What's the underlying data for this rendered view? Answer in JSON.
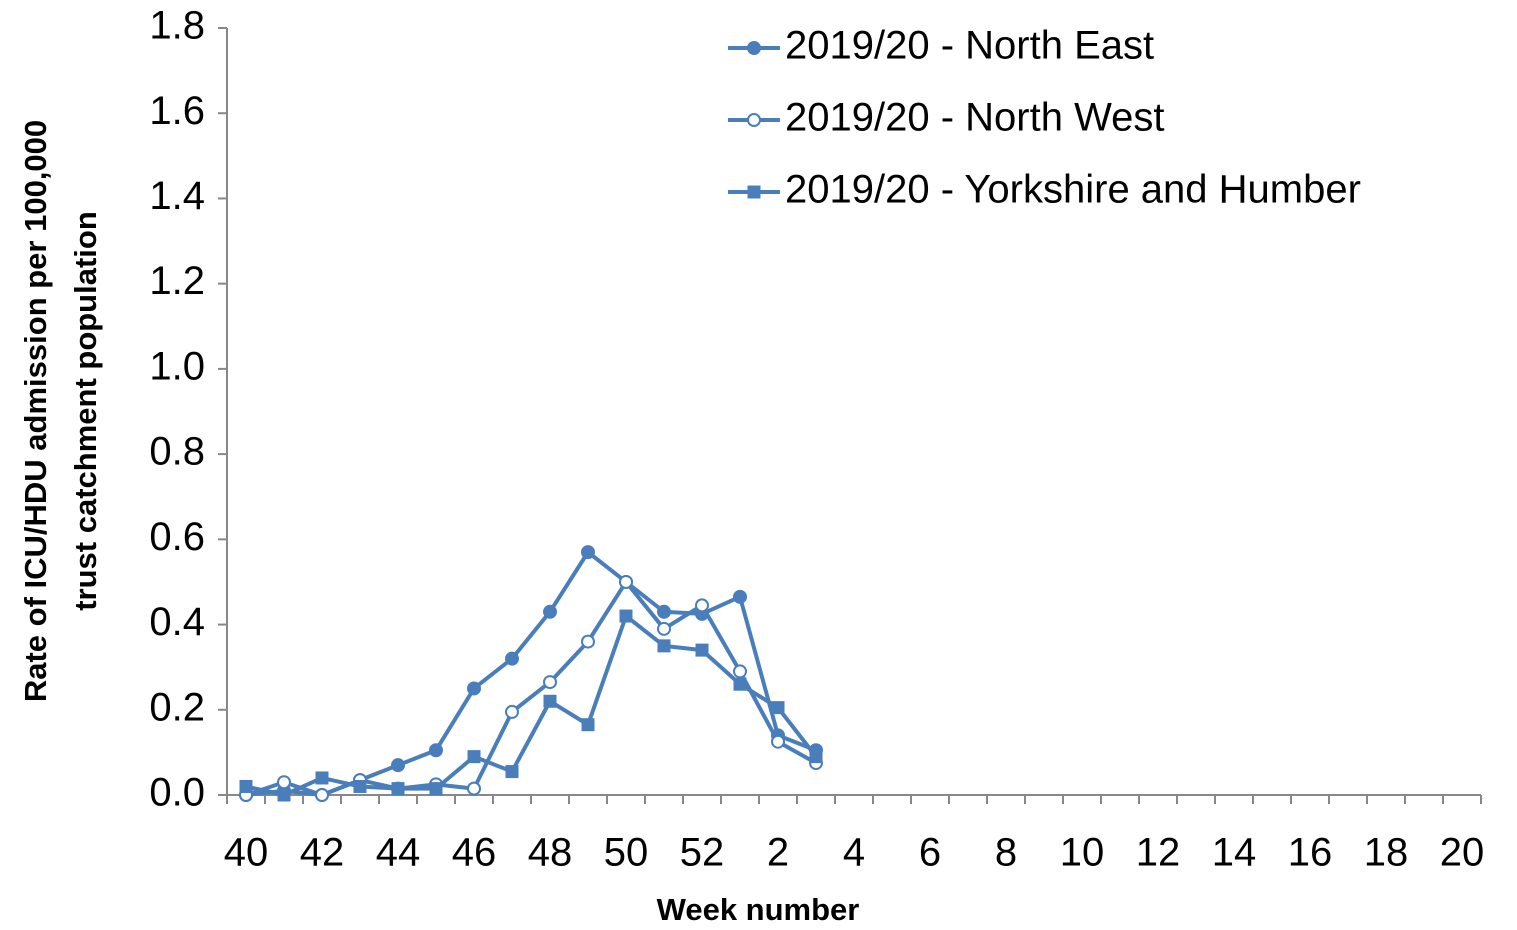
{
  "chart_data": {
    "type": "line",
    "xlabel": "Week number",
    "ylabel": [
      "Rate of ICU/HDU admission per 100,000",
      "trust catchment population"
    ],
    "categories": [
      "40",
      null,
      "42",
      null,
      "44",
      null,
      "46",
      null,
      "48",
      null,
      "50",
      null,
      "52",
      null,
      "2",
      null,
      "4",
      null,
      "6",
      null,
      "8",
      null,
      "10",
      null,
      "12",
      null,
      "14",
      null,
      "16",
      null,
      "18",
      null,
      "20"
    ],
    "ylim": [
      0,
      1.8
    ],
    "yticks": [
      {
        "value": 0,
        "label": "0.0"
      },
      0.2,
      0.4,
      0.6,
      0.8,
      {
        "value": 1,
        "label": "1.0"
      },
      1.2,
      1.4,
      1.6,
      1.8
    ],
    "legend": "top-right",
    "series": [
      {
        "name": "2019/20 - North East",
        "color": "#4a7ebb",
        "marker": "circle",
        "values": [
          0.0,
          0.01,
          0.0,
          0.035,
          0.07,
          0.105,
          0.25,
          0.32,
          0.43,
          0.57,
          0.5,
          0.43,
          0.425,
          0.465,
          0.14,
          0.105,
          null,
          null,
          null,
          null,
          null,
          null,
          null,
          null,
          null,
          null,
          null,
          null,
          null,
          null,
          null,
          null,
          null
        ]
      },
      {
        "name": "2019/20 - North West",
        "color": "#4a7ebb",
        "marker": "open-circle",
        "values": [
          0.0,
          0.03,
          0.0,
          0.035,
          0.015,
          0.025,
          0.015,
          0.195,
          0.265,
          0.36,
          0.5,
          0.39,
          0.445,
          0.29,
          0.125,
          0.075,
          null,
          null,
          null,
          null,
          null,
          null,
          null,
          null,
          null,
          null,
          null,
          null,
          null,
          null,
          null,
          null,
          null
        ]
      },
      {
        "name": "2019/20 - Yorkshire and Humber",
        "color": "#4a7ebb",
        "marker": "square",
        "values": [
          0.02,
          0.0,
          0.04,
          0.02,
          0.015,
          0.015,
          0.09,
          0.055,
          0.22,
          0.165,
          0.42,
          0.35,
          0.34,
          0.26,
          0.205,
          0.09,
          null,
          null,
          null,
          null,
          null,
          null,
          null,
          null,
          null,
          null,
          null,
          null,
          null,
          null,
          null,
          null,
          null
        ]
      }
    ]
  }
}
